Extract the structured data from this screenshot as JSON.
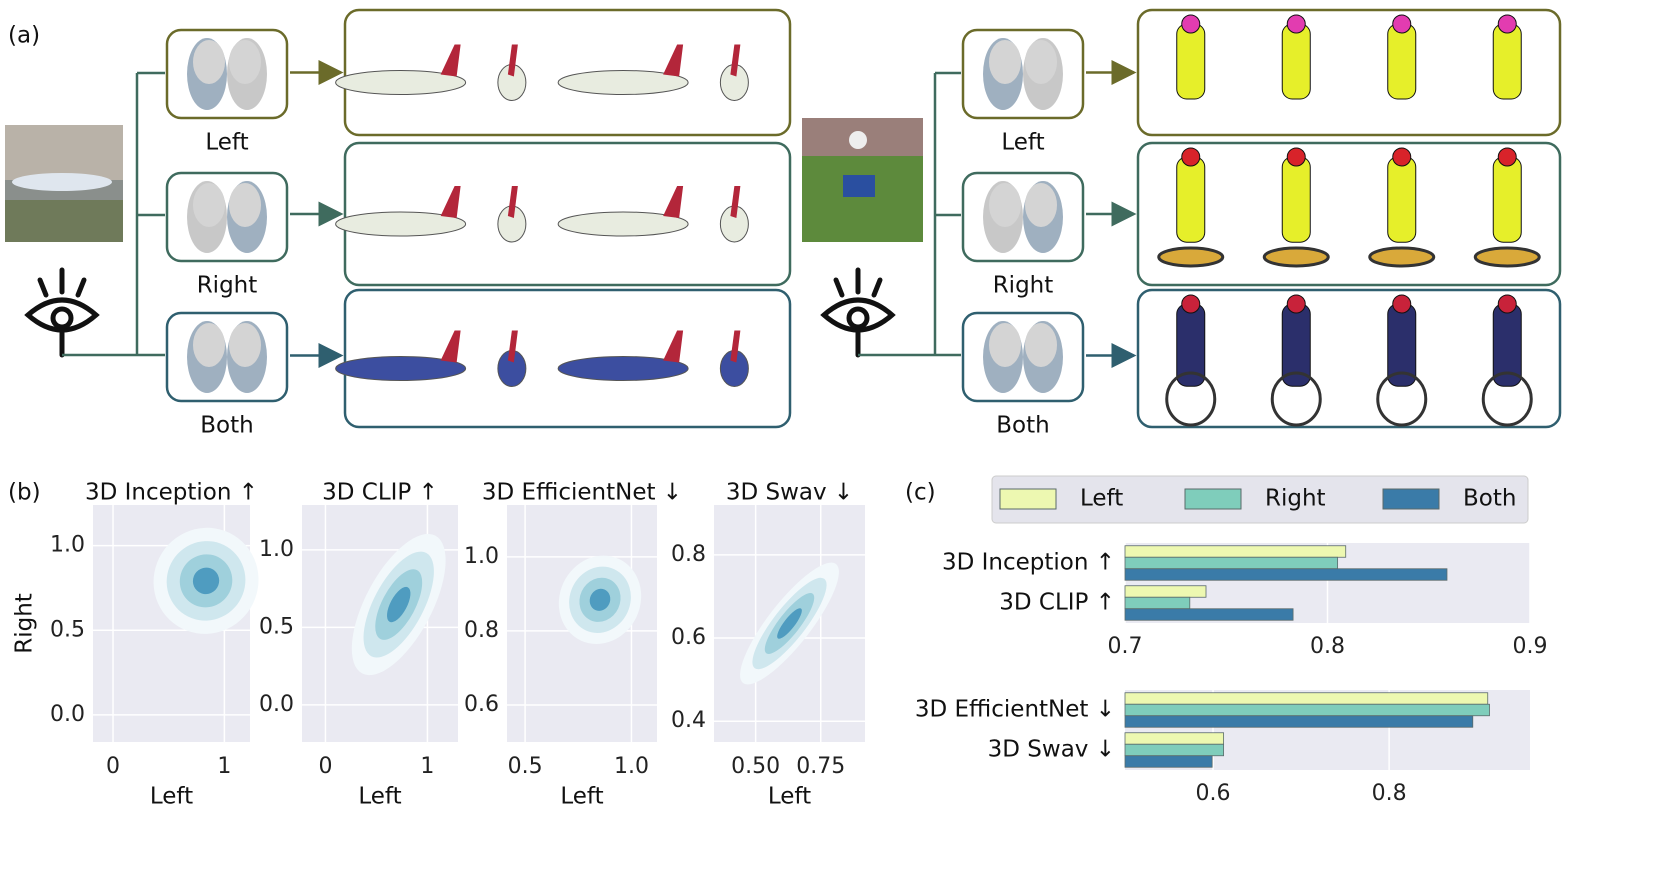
{
  "panel_labels": [
    "(a)",
    "(b)",
    "(c)"
  ],
  "panel_a": {
    "left_example": {
      "rows": [
        "Left",
        "Right",
        "Both"
      ]
    },
    "right_example": {
      "rows": [
        "Left",
        "Right",
        "Both"
      ]
    }
  },
  "chart_data": [
    {
      "type": "scatter",
      "title": "3D Inception ↑",
      "xlabel": "Left",
      "ylabel": "Right",
      "xlim": [
        -0.18,
        1.23
      ],
      "ylim": [
        -0.16,
        1.24
      ],
      "xticks": [
        0,
        1
      ],
      "yticks": [
        {
          "value": 0,
          "label": "0.0"
        },
        0.5,
        {
          "value": 1,
          "label": "1.0"
        }
      ],
      "grid": true
    },
    {
      "type": "scatter",
      "title": "3D CLIP ↑",
      "xlabel": "Left",
      "xlim": [
        -0.23,
        1.3
      ],
      "ylim": [
        -0.24,
        1.29
      ],
      "xticks": [
        0,
        1
      ],
      "yticks": [
        {
          "value": 0,
          "label": "0.0"
        },
        0.5,
        {
          "value": 1,
          "label": "1.0"
        }
      ],
      "grid": true
    },
    {
      "type": "scatter",
      "title": "3D EfficientNet ↓",
      "xlabel": "Left",
      "xlim": [
        0.415,
        1.12
      ],
      "ylim": [
        0.5,
        1.14
      ],
      "xticks": [
        0.5,
        {
          "value": 1,
          "label": "1.0"
        }
      ],
      "yticks": [
        0.6,
        0.8,
        {
          "value": 1,
          "label": "1.0"
        }
      ],
      "grid": true
    },
    {
      "type": "scatter",
      "title": "3D Swav ↓",
      "xlabel": "Left",
      "xlim": [
        0.34,
        0.92
      ],
      "ylim": [
        0.35,
        0.92
      ],
      "xticks": [
        {
          "value": 0.5,
          "label": "0.50"
        },
        0.75
      ],
      "yticks": [
        0.4,
        0.6,
        0.8
      ],
      "grid": true
    },
    {
      "type": "hbar",
      "categories": [
        "3D Inception ↑",
        "3D CLIP ↑"
      ],
      "series": [
        {
          "name": "Left",
          "color": "#edf8b1",
          "values": [
            0.809,
            0.74
          ]
        },
        {
          "name": "Right",
          "color": "#7fcdbb",
          "values": [
            0.805,
            0.732
          ]
        },
        {
          "name": "Both",
          "color": "#3a7ba8",
          "values": [
            0.859,
            0.783
          ]
        }
      ],
      "xlim": [
        0.7,
        0.9
      ],
      "xticks": [
        0.7,
        0.8,
        0.9
      ],
      "grid": true,
      "legend": "top"
    },
    {
      "type": "hbar",
      "categories": [
        "3D EfficientNet ↓",
        "3D Swav ↓"
      ],
      "series": [
        {
          "color": "#edf8b1",
          "values": [
            0.912,
            0.612
          ]
        },
        {
          "color": "#7fcdbb",
          "values": [
            0.914,
            0.612
          ]
        },
        {
          "color": "#3a7ba8",
          "values": [
            0.895,
            0.599
          ]
        }
      ],
      "xlim": [
        0.5,
        0.96
      ],
      "xticks": [
        0.6,
        0.8
      ],
      "grid": true
    }
  ]
}
